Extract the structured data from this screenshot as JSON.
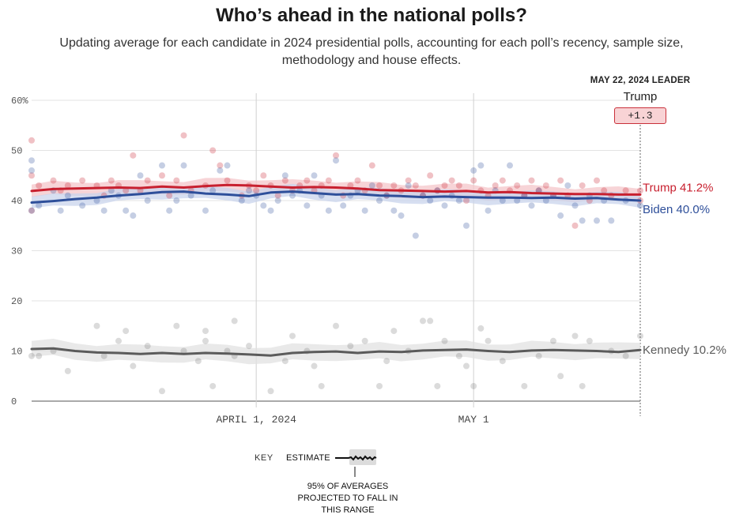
{
  "title": "Who’s ahead in the national polls?",
  "subtitle": "Updating average for each candidate in 2024 presidential polls, accounting for each poll’s recency, sample size, methodology and house effects.",
  "leader": {
    "heading": "MAY 22, 2024 LEADER",
    "name": "Trump",
    "margin": "+1.3"
  },
  "key": {
    "label": "KEY",
    "estimate": "ESTIMATE",
    "range": "95% OF AVERAGES PROJECTED TO FALL IN THIS RANGE"
  },
  "colors": {
    "trump": "#c8202f",
    "biden": "#2e4f9a",
    "kennedy": "#5b5b5b",
    "trump_band": "#f4c6c9",
    "biden_band": "#cad4ec",
    "kennedy_band": "#e1e1e1",
    "grid": "#e3e3e3"
  },
  "chart_data": {
    "type": "line",
    "title": "Who’s ahead in the national polls?",
    "x_domain_days": [
      0,
      84
    ],
    "x_ticks": [
      {
        "day": 31,
        "label": "APRIL 1, 2024"
      },
      {
        "day": 61,
        "label": "MAY 1"
      }
    ],
    "ylim": [
      0,
      60
    ],
    "y_ticks": [
      0,
      10,
      20,
      30,
      40,
      50,
      60
    ],
    "y_tick_labels": [
      "0",
      "10",
      "20",
      "30",
      "40",
      "50",
      "60%"
    ],
    "end_marker_day": 84,
    "series": [
      {
        "name": "Trump",
        "color_key": "trump",
        "end_label": "Trump 41.2%",
        "band": 1.3,
        "days": [
          0,
          3,
          6,
          9,
          12,
          15,
          18,
          21,
          24,
          27,
          30,
          33,
          36,
          39,
          42,
          45,
          48,
          51,
          54,
          57,
          60,
          63,
          66,
          69,
          72,
          75,
          78,
          81,
          84
        ],
        "values": [
          41.9,
          42.3,
          42.4,
          42.5,
          42.6,
          42.5,
          42.8,
          42.6,
          42.9,
          43.1,
          43.0,
          42.8,
          42.6,
          42.7,
          42.6,
          42.4,
          42.1,
          42.0,
          41.9,
          41.8,
          41.9,
          41.6,
          41.7,
          41.5,
          41.4,
          41.3,
          41.3,
          41.2,
          41.2
        ],
        "polls": [
          [
            0,
            52
          ],
          [
            0,
            45
          ],
          [
            0,
            38
          ],
          [
            1,
            43
          ],
          [
            3,
            44
          ],
          [
            4,
            42
          ],
          [
            5,
            43
          ],
          [
            7,
            44
          ],
          [
            9,
            43
          ],
          [
            10,
            41
          ],
          [
            11,
            44
          ],
          [
            12,
            43
          ],
          [
            13,
            42
          ],
          [
            14,
            49
          ],
          [
            15,
            42
          ],
          [
            16,
            44
          ],
          [
            18,
            45
          ],
          [
            19,
            41
          ],
          [
            20,
            44
          ],
          [
            21,
            53
          ],
          [
            22,
            42
          ],
          [
            24,
            43
          ],
          [
            25,
            50
          ],
          [
            26,
            47
          ],
          [
            27,
            44
          ],
          [
            29,
            41
          ],
          [
            30,
            43
          ],
          [
            31,
            42
          ],
          [
            32,
            45
          ],
          [
            33,
            43
          ],
          [
            34,
            41
          ],
          [
            35,
            44
          ],
          [
            36,
            42
          ],
          [
            37,
            43
          ],
          [
            38,
            44
          ],
          [
            39,
            42
          ],
          [
            40,
            43
          ],
          [
            41,
            44
          ],
          [
            42,
            49
          ],
          [
            43,
            41
          ],
          [
            44,
            43
          ],
          [
            45,
            44
          ],
          [
            46,
            42
          ],
          [
            47,
            47
          ],
          [
            48,
            43
          ],
          [
            49,
            41
          ],
          [
            50,
            43
          ],
          [
            51,
            42
          ],
          [
            52,
            44
          ],
          [
            53,
            43
          ],
          [
            54,
            41
          ],
          [
            55,
            45
          ],
          [
            56,
            42
          ],
          [
            57,
            43
          ],
          [
            58,
            44
          ],
          [
            59,
            43
          ],
          [
            60,
            40
          ],
          [
            61,
            44
          ],
          [
            62,
            42
          ],
          [
            63,
            41
          ],
          [
            64,
            43
          ],
          [
            65,
            44
          ],
          [
            66,
            42
          ],
          [
            67,
            43
          ],
          [
            68,
            41
          ],
          [
            69,
            44
          ],
          [
            70,
            42
          ],
          [
            71,
            43
          ],
          [
            72,
            41
          ],
          [
            73,
            44
          ],
          [
            74,
            41
          ],
          [
            75,
            35
          ],
          [
            76,
            43
          ],
          [
            77,
            40
          ],
          [
            78,
            44
          ],
          [
            79,
            42
          ],
          [
            80,
            41
          ],
          [
            82,
            42
          ],
          [
            84,
            42
          ],
          [
            84,
            40
          ]
        ]
      },
      {
        "name": "Biden",
        "color_key": "biden",
        "end_label": "Biden 40.0%",
        "band": 1.2,
        "days": [
          0,
          3,
          6,
          9,
          12,
          15,
          18,
          21,
          24,
          27,
          30,
          33,
          36,
          39,
          42,
          45,
          48,
          51,
          54,
          57,
          60,
          63,
          66,
          69,
          72,
          75,
          78,
          81,
          84
        ],
        "values": [
          39.6,
          39.9,
          40.3,
          40.6,
          41.0,
          41.3,
          41.7,
          41.8,
          41.4,
          41.2,
          40.9,
          41.6,
          41.8,
          41.5,
          41.2,
          41.3,
          41.0,
          40.9,
          40.7,
          40.8,
          40.7,
          40.6,
          40.6,
          40.5,
          40.6,
          40.4,
          40.5,
          40.2,
          40.0
        ],
        "polls": [
          [
            0,
            48
          ],
          [
            0,
            46
          ],
          [
            0,
            38
          ],
          [
            1,
            39
          ],
          [
            3,
            42
          ],
          [
            4,
            38
          ],
          [
            5,
            41
          ],
          [
            7,
            39
          ],
          [
            9,
            40
          ],
          [
            10,
            38
          ],
          [
            11,
            42
          ],
          [
            12,
            41
          ],
          [
            13,
            38
          ],
          [
            14,
            37
          ],
          [
            15,
            45
          ],
          [
            16,
            40
          ],
          [
            18,
            47
          ],
          [
            19,
            38
          ],
          [
            20,
            40
          ],
          [
            21,
            47
          ],
          [
            22,
            41
          ],
          [
            24,
            38
          ],
          [
            25,
            42
          ],
          [
            26,
            46
          ],
          [
            27,
            47
          ],
          [
            29,
            40
          ],
          [
            30,
            42
          ],
          [
            31,
            41
          ],
          [
            32,
            39
          ],
          [
            33,
            38
          ],
          [
            34,
            40
          ],
          [
            35,
            45
          ],
          [
            36,
            41
          ],
          [
            37,
            42
          ],
          [
            38,
            39
          ],
          [
            39,
            45
          ],
          [
            40,
            41
          ],
          [
            41,
            38
          ],
          [
            42,
            48
          ],
          [
            43,
            39
          ],
          [
            44,
            41
          ],
          [
            45,
            42
          ],
          [
            46,
            38
          ],
          [
            47,
            43
          ],
          [
            48,
            40
          ],
          [
            49,
            41
          ],
          [
            50,
            38
          ],
          [
            51,
            37
          ],
          [
            52,
            43
          ],
          [
            53,
            33
          ],
          [
            54,
            41
          ],
          [
            55,
            40
          ],
          [
            56,
            42
          ],
          [
            57,
            39
          ],
          [
            58,
            41
          ],
          [
            59,
            40
          ],
          [
            60,
            35
          ],
          [
            61,
            46
          ],
          [
            62,
            47
          ],
          [
            63,
            38
          ],
          [
            64,
            42
          ],
          [
            65,
            40
          ],
          [
            66,
            47
          ],
          [
            67,
            40
          ],
          [
            68,
            41
          ],
          [
            69,
            39
          ],
          [
            70,
            42
          ],
          [
            71,
            40
          ],
          [
            72,
            41
          ],
          [
            73,
            37
          ],
          [
            74,
            43
          ],
          [
            75,
            39
          ],
          [
            76,
            36
          ],
          [
            77,
            41
          ],
          [
            78,
            36
          ],
          [
            79,
            40
          ],
          [
            80,
            36
          ],
          [
            82,
            40
          ],
          [
            84,
            39
          ]
        ]
      },
      {
        "name": "Kennedy",
        "color_key": "kennedy",
        "end_label": "Kennedy 10.2%",
        "band": 1.6,
        "days": [
          0,
          3,
          6,
          9,
          12,
          15,
          18,
          21,
          24,
          27,
          30,
          33,
          36,
          39,
          42,
          45,
          48,
          51,
          54,
          57,
          60,
          63,
          66,
          69,
          72,
          75,
          78,
          81,
          84
        ],
        "values": [
          10.4,
          10.5,
          10.0,
          9.7,
          9.6,
          9.4,
          9.6,
          9.4,
          9.6,
          9.5,
          9.3,
          9.1,
          9.6,
          9.8,
          9.9,
          9.6,
          9.9,
          9.8,
          10.1,
          10.2,
          10.3,
          10.0,
          9.8,
          10.1,
          10.2,
          10.1,
          10.0,
          9.8,
          10.2
        ],
        "polls": [
          [
            0,
            9
          ],
          [
            1,
            9
          ],
          [
            3,
            10
          ],
          [
            5,
            6
          ],
          [
            9,
            15
          ],
          [
            10,
            9
          ],
          [
            12,
            12
          ],
          [
            13,
            14
          ],
          [
            14,
            7
          ],
          [
            16,
            11
          ],
          [
            18,
            2
          ],
          [
            20,
            15
          ],
          [
            21,
            10
          ],
          [
            23,
            8
          ],
          [
            24,
            14
          ],
          [
            24,
            12
          ],
          [
            25,
            3
          ],
          [
            27,
            10
          ],
          [
            28,
            16
          ],
          [
            28,
            9
          ],
          [
            30,
            11
          ],
          [
            33,
            2
          ],
          [
            35,
            8
          ],
          [
            36,
            13
          ],
          [
            38,
            10
          ],
          [
            39,
            7
          ],
          [
            40,
            3
          ],
          [
            42,
            15
          ],
          [
            44,
            11
          ],
          [
            46,
            12
          ],
          [
            48,
            3
          ],
          [
            49,
            8
          ],
          [
            50,
            14
          ],
          [
            52,
            10
          ],
          [
            54,
            16
          ],
          [
            55,
            16
          ],
          [
            56,
            3
          ],
          [
            57,
            12
          ],
          [
            59,
            9
          ],
          [
            60,
            7
          ],
          [
            61,
            3
          ],
          [
            62,
            14.5
          ],
          [
            63,
            12
          ],
          [
            65,
            8
          ],
          [
            68,
            3
          ],
          [
            70,
            9
          ],
          [
            72,
            12
          ],
          [
            73,
            5
          ],
          [
            75,
            13
          ],
          [
            76,
            3
          ],
          [
            77,
            12
          ],
          [
            80,
            10
          ],
          [
            82,
            9
          ],
          [
            84,
            13
          ]
        ]
      }
    ]
  }
}
